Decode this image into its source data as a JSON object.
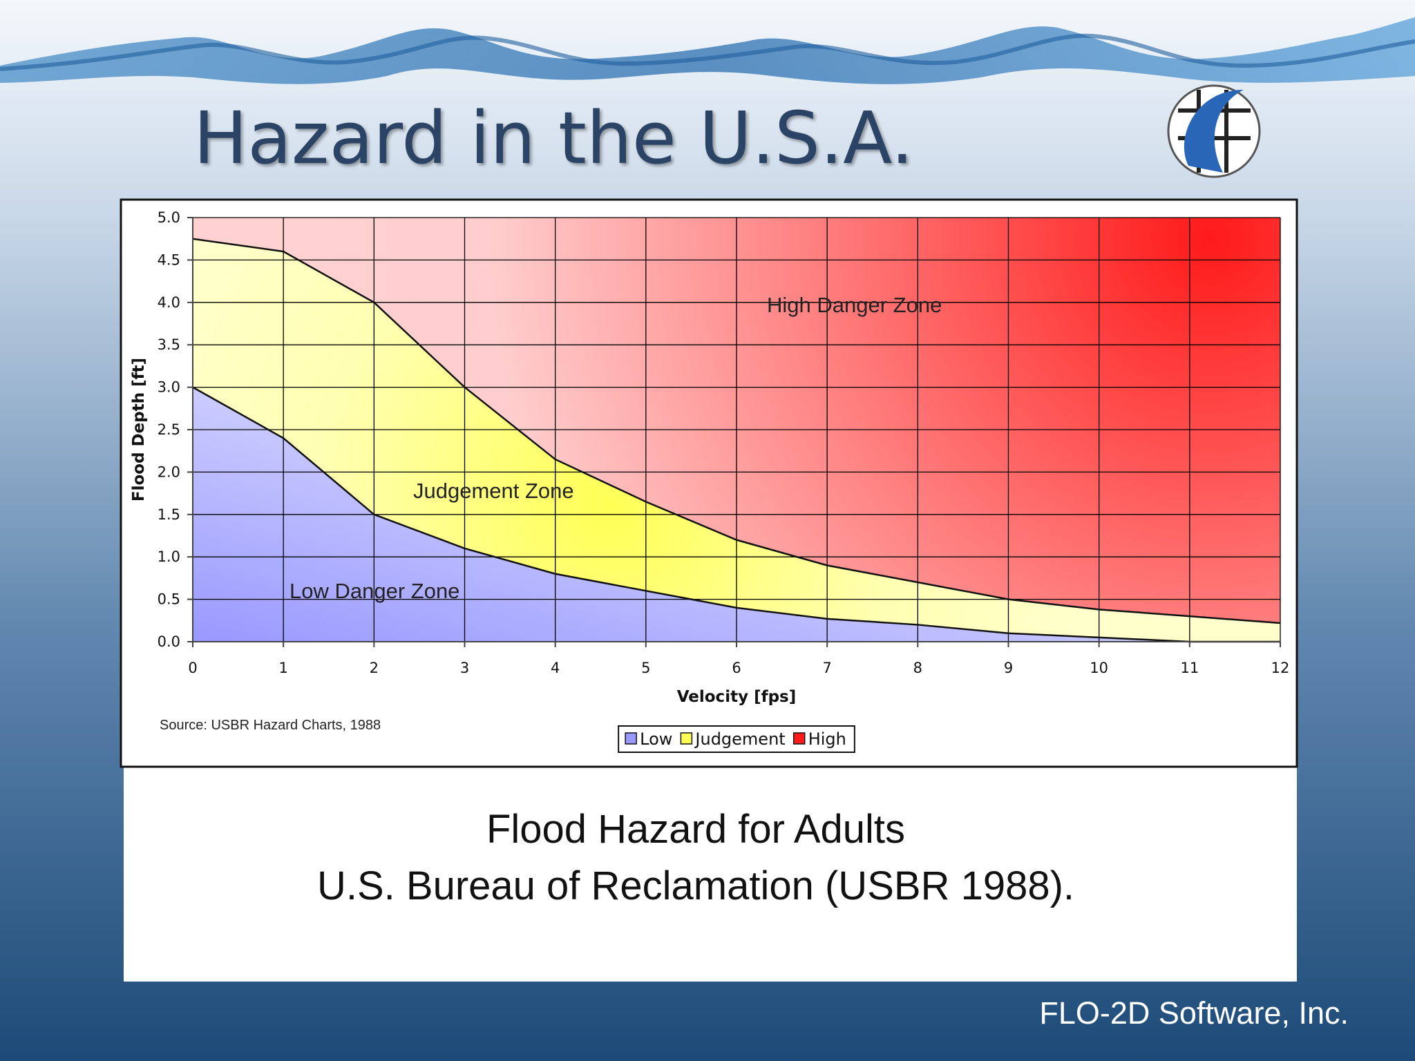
{
  "title": "Hazard in the U.S.A.",
  "chart_data": {
    "type": "stacked-area",
    "x_label": "Velocity [fps]",
    "y_label": "Flood Depth [ft]",
    "x": [
      0,
      1,
      2,
      3,
      4,
      5,
      6,
      7,
      8,
      9,
      10,
      11,
      12
    ],
    "series": [
      {
        "name": "Low",
        "color": "#9999ff",
        "values": [
          3.0,
          2.4,
          1.5,
          1.1,
          0.8,
          0.6,
          0.4,
          0.27,
          0.2,
          0.1,
          0.05,
          0,
          0
        ]
      },
      {
        "name": "Judgement",
        "color": "#ffff55",
        "values": [
          1.75,
          2.2,
          2.5,
          1.9,
          1.35,
          1.05,
          0.8,
          0.63,
          0.5,
          0.4,
          0.33,
          0.3,
          0.22
        ]
      },
      {
        "name": "High",
        "color": "#ff1a1a",
        "values": [
          0.25,
          0.4,
          1.0,
          2.0,
          2.85,
          3.35,
          3.8,
          4.1,
          4.3,
          4.5,
          4.62,
          4.7,
          4.78
        ]
      }
    ],
    "xlim": [
      0,
      12
    ],
    "ylim": [
      0,
      5
    ],
    "xticks": [
      0,
      1,
      2,
      3,
      4,
      5,
      6,
      7,
      8,
      9,
      10,
      11,
      12
    ],
    "yticks": [
      {
        "value": 0,
        "label": "0.0"
      },
      0.5,
      {
        "value": 1,
        "label": "1.0"
      },
      1.5,
      {
        "value": 2,
        "label": "2.0"
      },
      2.5,
      {
        "value": 3,
        "label": "3.0"
      },
      3.5,
      {
        "value": 4,
        "label": "4.0"
      },
      4.5,
      {
        "value": 5,
        "label": "5.0"
      }
    ],
    "grid": true,
    "legend": "bottom",
    "annotations": [
      "High Danger Zone",
      "Judgement Zone",
      "Low Danger Zone"
    ],
    "source": "Source: USBR Hazard Charts, 1988"
  },
  "caption": [
    "Flood Hazard for Adults",
    "U.S. Bureau of Reclamation (USBR 1988)."
  ],
  "footer": "FLO-2D Software, Inc."
}
